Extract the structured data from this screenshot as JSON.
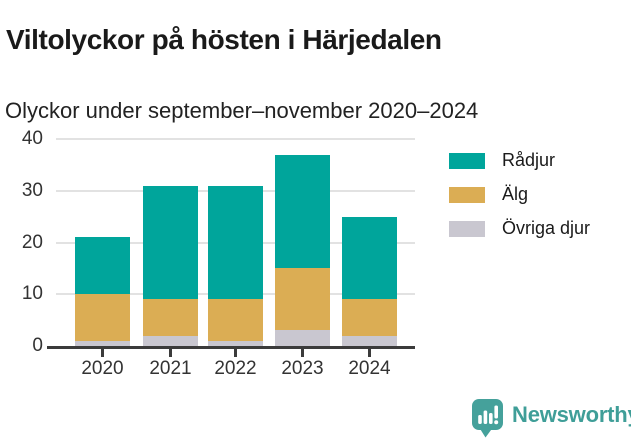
{
  "header": {
    "title": "Viltolyckor på hösten i Härjedalen",
    "subtitle": "Olyckor under september–november 2020–2024"
  },
  "chart_data": {
    "type": "bar",
    "stacked": true,
    "title": "Viltolyckor på hösten i Härjedalen",
    "subtitle": "Olyckor under september–november 2020–2024",
    "categories": [
      "2020",
      "2021",
      "2022",
      "2023",
      "2024"
    ],
    "series": [
      {
        "name": "Övriga djur",
        "color": "#c9c7d0",
        "values": [
          1,
          2,
          1,
          3,
          2
        ]
      },
      {
        "name": "Älg",
        "color": "#dbad54",
        "values": [
          9,
          7,
          8,
          12,
          7
        ]
      },
      {
        "name": "Rådjur",
        "color": "#00a59b",
        "values": [
          11,
          22,
          22,
          22,
          16
        ]
      }
    ],
    "totals": [
      21,
      31,
      31,
      37,
      25
    ],
    "legend": [
      {
        "label": "Rådjur",
        "color": "#00a59b"
      },
      {
        "label": "Älg",
        "color": "#dbad54"
      },
      {
        "label": "Övriga djur",
        "color": "#c9c7d0"
      }
    ],
    "legend_position": "right",
    "xlabel": "",
    "ylabel": "",
    "ylim": [
      0,
      40
    ],
    "y_ticks": [
      0,
      10,
      20,
      30,
      40
    ],
    "grid": true
  },
  "colors": {
    "radjur": "#00a59b",
    "alg": "#dbad54",
    "ovriga_djur": "#c9c7d0",
    "brand": "#45a19b",
    "axis": "#3b3b3b",
    "gridline": "#e2e2e2"
  },
  "footer": {
    "brand": "Newsworthy"
  }
}
